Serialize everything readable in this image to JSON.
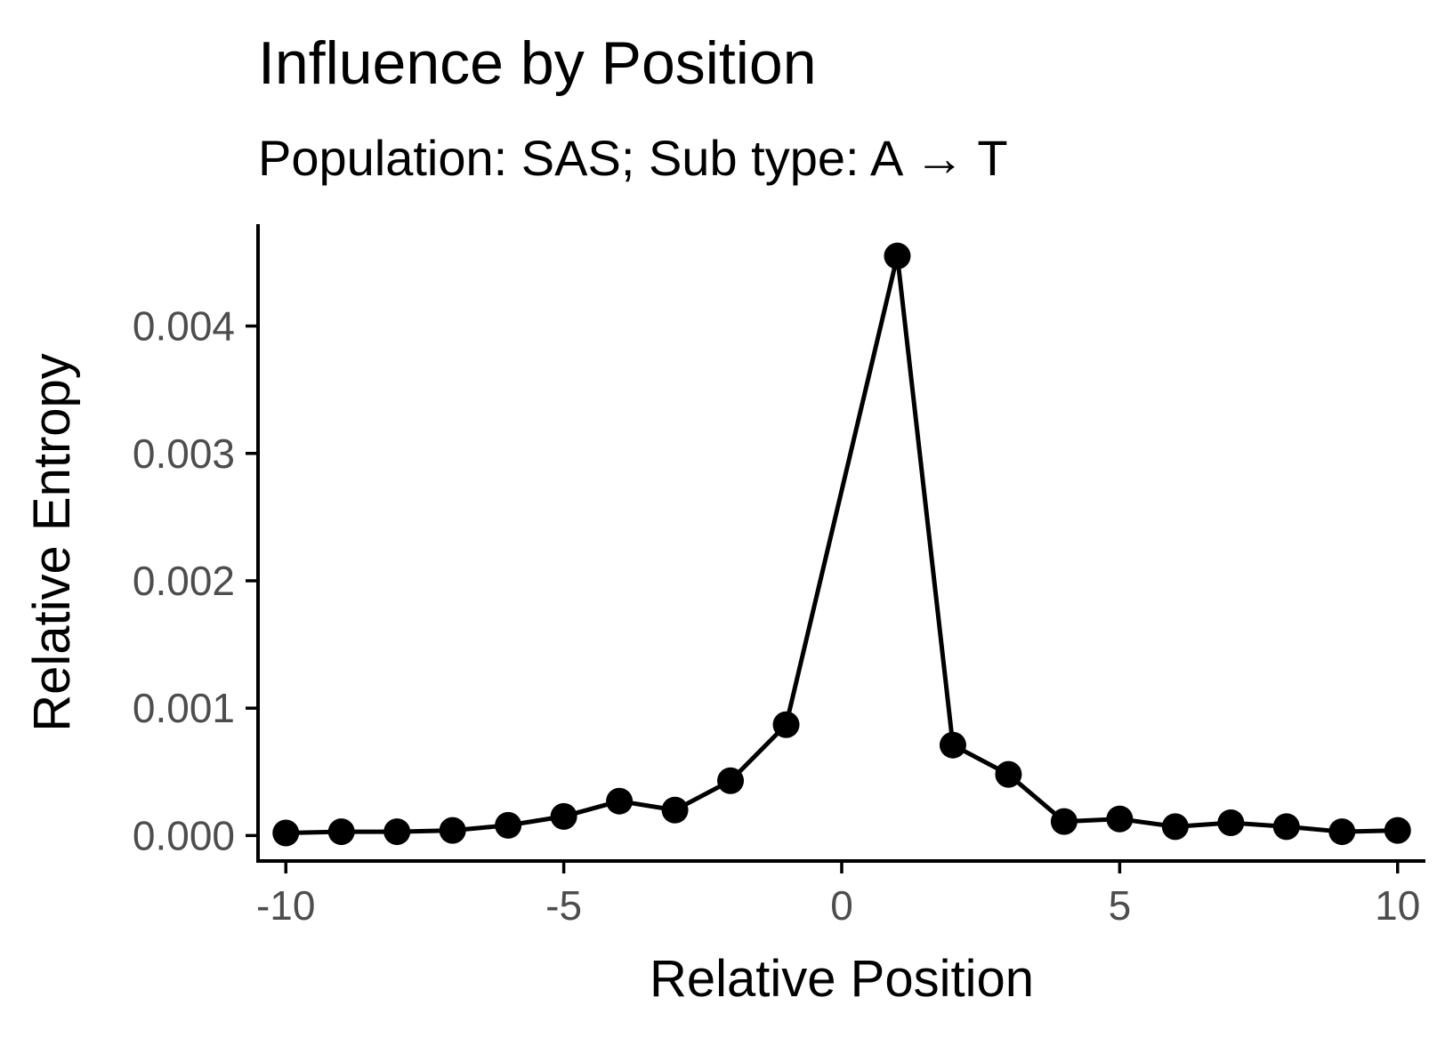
{
  "chart_data": {
    "type": "line",
    "title": "Influence by Position",
    "subtitle": "Population: SAS; Sub type: A → T",
    "xlabel": "Relative Position",
    "ylabel": "Relative Entropy",
    "xlim": [
      -10.5,
      10.5
    ],
    "ylim": [
      -0.0002,
      0.0048
    ],
    "xticks": [
      -10,
      -5,
      0,
      5,
      10
    ],
    "xtick_labels": [
      "-10",
      "-5",
      "0",
      "5",
      "10"
    ],
    "yticks": [
      0,
      0.001,
      0.002,
      0.003,
      0.004
    ],
    "ytick_labels": [
      "0.000",
      "0.001",
      "0.002",
      "0.003",
      "0.004"
    ],
    "grid": false,
    "markers": true,
    "series": [
      {
        "color": "#000000",
        "x": [
          -10,
          -9,
          -8,
          -7,
          -6,
          -5,
          -4,
          -3,
          -2,
          -1,
          1,
          2,
          3,
          4,
          5,
          6,
          7,
          8,
          9,
          10
        ],
        "y": [
          2e-05,
          3e-05,
          3e-05,
          4e-05,
          8e-05,
          0.00015,
          0.00027,
          0.0002,
          0.00043,
          0.00087,
          0.00455,
          0.00071,
          0.00048,
          0.00011,
          0.00013,
          7e-05,
          0.0001,
          7e-05,
          3e-05,
          4e-05
        ]
      }
    ]
  }
}
